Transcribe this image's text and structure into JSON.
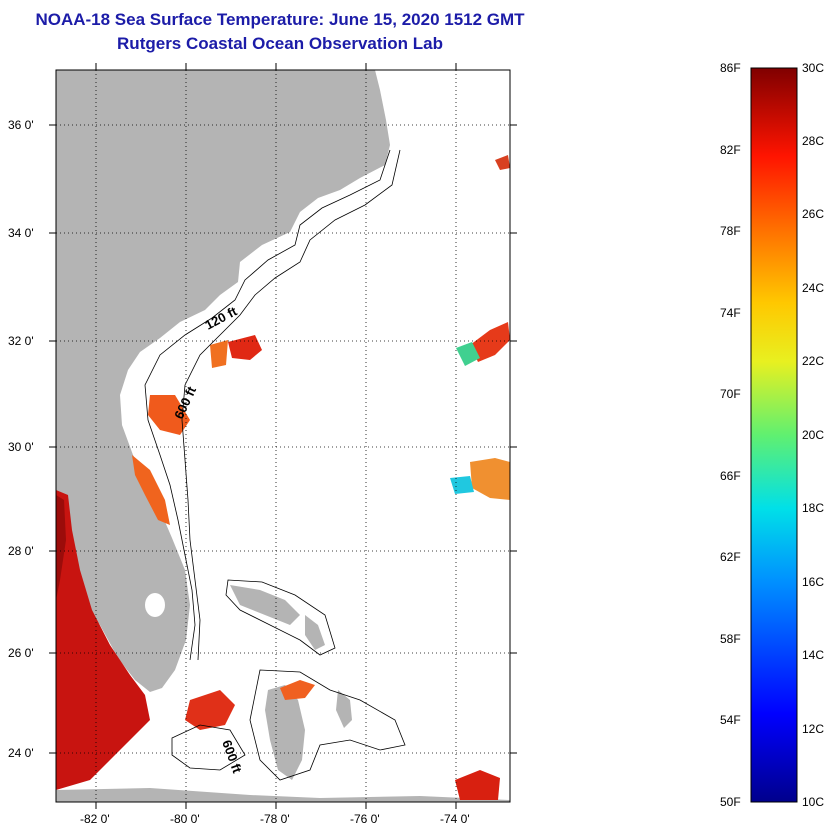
{
  "title": "NOAA-18 Sea Surface Temperature:  June 15, 2020 1512 GMT",
  "subtitle": "Rutgers Coastal Ocean Observation Lab",
  "lat_labels": [
    "36 0'",
    "34 0'",
    "32 0'",
    "30 0'",
    "28 0'",
    "26 0'",
    "24 0'"
  ],
  "lon_labels": [
    "-82 0'",
    "-80 0'",
    "-78 0'",
    "-76 0'",
    "-74 0'"
  ],
  "contour_labels": [
    "120 ft",
    "600 ft",
    "600 ft"
  ],
  "colorbar": {
    "fahrenheit": [
      "86F",
      "82F",
      "78F",
      "74F",
      "70F",
      "66F",
      "62F",
      "58F",
      "54F",
      "50F"
    ],
    "celsius": [
      "30C",
      "28C",
      "26C",
      "24C",
      "22C",
      "20C",
      "18C",
      "16C",
      "14C",
      "12C",
      "10C"
    ]
  },
  "colors": {
    "land": "#b4b4b4",
    "title": "#1c1ca8",
    "warm": "#d41c10",
    "orange": "#f06a1e"
  }
}
